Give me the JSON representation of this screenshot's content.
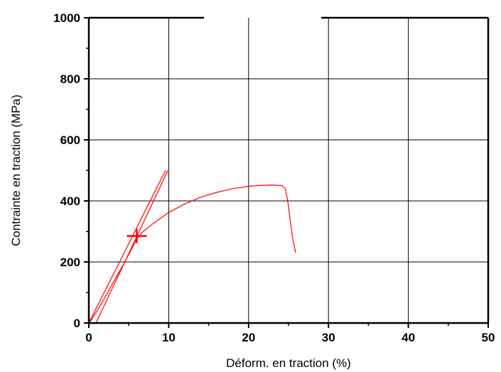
{
  "chart_data": {
    "type": "line",
    "title": "",
    "xlabel": "Déform. en traction (%)",
    "ylabel": "Contrainte en traction (MPa)",
    "xlim": [
      0,
      50
    ],
    "ylim": [
      0,
      1000
    ],
    "x_ticks": [
      0,
      10,
      20,
      30,
      40,
      50
    ],
    "y_ticks": [
      0,
      200,
      400,
      600,
      800,
      1000
    ],
    "x_tick_labels": [
      "0",
      "10",
      "20",
      "30",
      "40",
      "50"
    ],
    "y_tick_labels": [
      "0",
      "200",
      "400",
      "600",
      "800",
      "1000"
    ],
    "grid": true,
    "series": [
      {
        "color": "#ff0000",
        "points": [
          [
            0.2,
            5
          ],
          [
            1.5,
            60
          ],
          [
            3,
            130
          ],
          [
            4.5,
            200
          ],
          [
            5.6,
            255
          ],
          [
            6.0,
            275
          ],
          [
            6.6,
            295
          ],
          [
            8.0,
            325
          ],
          [
            10,
            362
          ],
          [
            12,
            390
          ],
          [
            14,
            412
          ],
          [
            16,
            428
          ],
          [
            18,
            440
          ],
          [
            20,
            448
          ],
          [
            21.5,
            451
          ],
          [
            23,
            452
          ],
          [
            24.2,
            450
          ],
          [
            24.6,
            440
          ],
          [
            24.9,
            400
          ],
          [
            25.2,
            340
          ],
          [
            25.5,
            280
          ],
          [
            25.9,
            230
          ]
        ]
      },
      {
        "color": "#ff0000",
        "points": [
          [
            0.9,
            0
          ],
          [
            9.9,
            500
          ]
        ]
      },
      {
        "color": "#ff0000",
        "points": [
          [
            0.0,
            0
          ],
          [
            9.6,
            500
          ]
        ]
      }
    ],
    "markers": [
      {
        "shape": "cross",
        "x": 6.0,
        "y": 285,
        "color": "#ff0000"
      }
    ]
  }
}
